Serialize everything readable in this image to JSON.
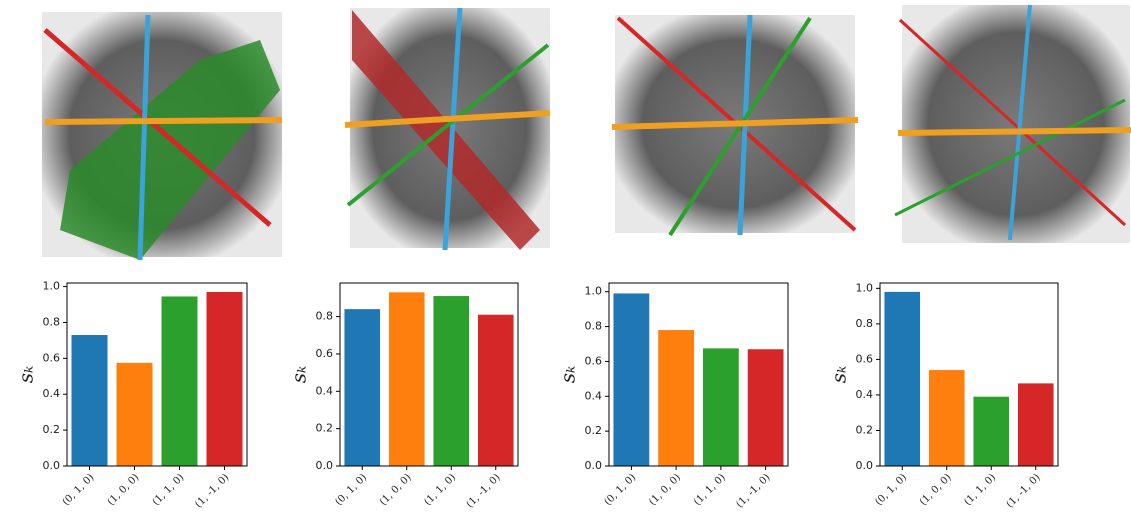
{
  "chart_data": [
    {
      "type": "bar",
      "ylabel": "sₖ",
      "categories": [
        "(0, 1, 0)",
        "(1, 0, 0)",
        "(1, 1, 0)",
        "(1, -1, 0)"
      ],
      "values": [
        0.73,
        0.575,
        0.945,
        0.97
      ],
      "colors": [
        "#1f77b4",
        "#ff7f0e",
        "#2ca02c",
        "#d62728"
      ],
      "ylim": [
        0,
        1.02
      ],
      "yticks": [
        {
          "value": 0,
          "label": "0.0"
        },
        0.2,
        0.4,
        0.6,
        0.8,
        {
          "value": 1,
          "label": "1.0"
        }
      ]
    },
    {
      "type": "bar",
      "ylabel": "sₖ",
      "categories": [
        "(0, 1, 0)",
        "(1, 0, 0)",
        "(1, 1, 0)",
        "(1, -1, 0)"
      ],
      "values": [
        0.84,
        0.93,
        0.91,
        0.81
      ],
      "colors": [
        "#1f77b4",
        "#ff7f0e",
        "#2ca02c",
        "#d62728"
      ],
      "ylim": [
        0,
        0.98
      ],
      "yticks": [
        {
          "value": 0,
          "label": "0.0"
        },
        0.2,
        0.4,
        0.6,
        0.8
      ]
    },
    {
      "type": "bar",
      "ylabel": "sₖ",
      "categories": [
        "(0, 1, 0)",
        "(1, 0, 0)",
        "(1, 1, 0)",
        "(1, -1, 0)"
      ],
      "values": [
        0.99,
        0.78,
        0.675,
        0.67
      ],
      "colors": [
        "#1f77b4",
        "#ff7f0e",
        "#2ca02c",
        "#d62728"
      ],
      "ylim": [
        0,
        1.05
      ],
      "yticks": [
        {
          "value": 0,
          "label": "0.0"
        },
        0.2,
        0.4,
        0.6,
        0.8,
        {
          "value": 1,
          "label": "1.0"
        }
      ]
    },
    {
      "type": "bar",
      "ylabel": "sₖ",
      "categories": [
        "(0, 1, 0)",
        "(1, 0, 0)",
        "(1, 1, 0)",
        "(1, -1, 0)"
      ],
      "values": [
        0.98,
        0.54,
        0.39,
        0.465
      ],
      "colors": [
        "#1f77b4",
        "#ff7f0e",
        "#2ca02c",
        "#d62728"
      ],
      "ylim": [
        0,
        1.03
      ],
      "yticks": [
        {
          "value": 0,
          "label": "0.0"
        },
        0.2,
        0.4,
        0.6,
        0.8,
        {
          "value": 1,
          "label": "1.0"
        }
      ]
    }
  ]
}
